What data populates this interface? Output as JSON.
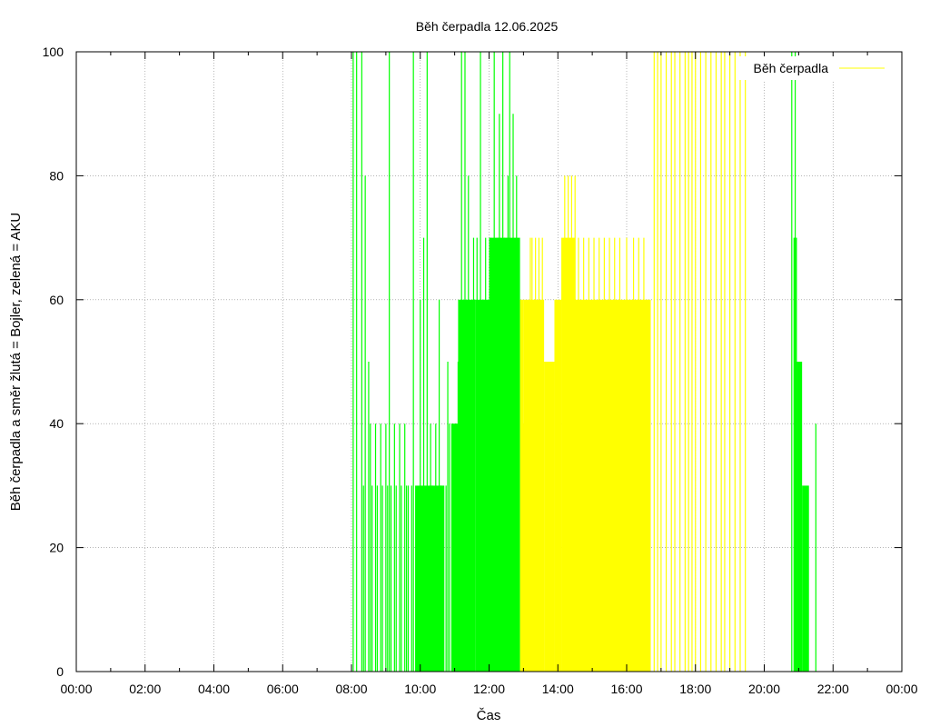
{
  "chart_data": {
    "type": "bar",
    "title": "Běh čerpadla 12.06.2025",
    "xlabel": "Čas",
    "ylabel": "Běh čerpadla a směr žlutá = Bojler, zelená = AKU",
    "xlim": [
      0,
      24
    ],
    "ylim": [
      0,
      100
    ],
    "x_ticks": [
      "00:00",
      "02:00",
      "04:00",
      "06:00",
      "08:00",
      "10:00",
      "12:00",
      "14:00",
      "16:00",
      "18:00",
      "20:00",
      "22:00",
      "00:00"
    ],
    "y_ticks": [
      "0",
      "20",
      "40",
      "60",
      "80",
      "100"
    ],
    "grid": true,
    "legend": {
      "entries": [
        "Běh čerpadla"
      ],
      "placement": "top-right",
      "color": "#ffff00"
    },
    "series": [
      {
        "direction": "AKU",
        "color": "#00ff00",
        "blocks": [
          {
            "start": 12.8,
            "end": 12.9,
            "value": 70
          },
          {
            "start": 12.0,
            "end": 12.8,
            "value": 70
          },
          {
            "start": 11.6,
            "end": 12.0,
            "value": 60
          },
          {
            "start": 11.1,
            "end": 11.6,
            "value": 60
          },
          {
            "start": 10.9,
            "end": 11.1,
            "value": 40
          },
          {
            "start": 9.85,
            "end": 10.7,
            "value": 30
          },
          {
            "start": 20.85,
            "end": 20.95,
            "value": 70
          },
          {
            "start": 20.95,
            "end": 21.1,
            "value": 50
          },
          {
            "start": 21.1,
            "end": 21.3,
            "value": 30
          }
        ],
        "spikes": [
          [
            8.05,
            100
          ],
          [
            8.15,
            100
          ],
          [
            8.3,
            100
          ],
          [
            8.35,
            30
          ],
          [
            8.4,
            80
          ],
          [
            8.5,
            50
          ],
          [
            8.55,
            40
          ],
          [
            8.6,
            30
          ],
          [
            8.7,
            40
          ],
          [
            8.75,
            30
          ],
          [
            8.85,
            40
          ],
          [
            8.9,
            30
          ],
          [
            9.0,
            40
          ],
          [
            9.05,
            30
          ],
          [
            9.1,
            100
          ],
          [
            9.15,
            30
          ],
          [
            9.25,
            40
          ],
          [
            9.3,
            30
          ],
          [
            9.4,
            40
          ],
          [
            9.45,
            30
          ],
          [
            9.55,
            40
          ],
          [
            9.6,
            30
          ],
          [
            9.65,
            30
          ],
          [
            9.75,
            30
          ],
          [
            9.8,
            100
          ],
          [
            10.0,
            60
          ],
          [
            10.1,
            70
          ],
          [
            10.2,
            100
          ],
          [
            10.3,
            40
          ],
          [
            10.35,
            30
          ],
          [
            10.45,
            40
          ],
          [
            10.55,
            60
          ],
          [
            10.6,
            30
          ],
          [
            10.75,
            30
          ],
          [
            10.8,
            50
          ],
          [
            10.85,
            40
          ],
          [
            11.05,
            40
          ],
          [
            11.1,
            50
          ],
          [
            11.2,
            100
          ],
          [
            11.3,
            100
          ],
          [
            11.4,
            80
          ],
          [
            11.5,
            60
          ],
          [
            11.55,
            70
          ],
          [
            11.65,
            70
          ],
          [
            11.75,
            100
          ],
          [
            11.85,
            60
          ],
          [
            11.9,
            70
          ],
          [
            12.05,
            70
          ],
          [
            12.15,
            100
          ],
          [
            12.25,
            70
          ],
          [
            12.3,
            90
          ],
          [
            12.4,
            100
          ],
          [
            12.45,
            70
          ],
          [
            12.55,
            80
          ],
          [
            12.6,
            100
          ],
          [
            12.7,
            90
          ],
          [
            12.8,
            80
          ],
          [
            20.8,
            100
          ],
          [
            20.9,
            100
          ],
          [
            21.0,
            50
          ],
          [
            21.5,
            40
          ]
        ]
      },
      {
        "direction": "Bojler",
        "color": "#ffff00",
        "blocks": [
          {
            "start": 12.9,
            "end": 13.0,
            "value": 60
          },
          {
            "start": 13.0,
            "end": 13.6,
            "value": 60
          },
          {
            "start": 13.6,
            "end": 13.9,
            "value": 50
          },
          {
            "start": 13.9,
            "end": 14.1,
            "value": 60
          },
          {
            "start": 14.1,
            "end": 14.5,
            "value": 70
          },
          {
            "start": 14.5,
            "end": 16.7,
            "value": 60
          }
        ],
        "spikes": [
          [
            13.0,
            40
          ],
          [
            13.1,
            40
          ],
          [
            13.2,
            70
          ],
          [
            13.25,
            70
          ],
          [
            13.35,
            70
          ],
          [
            13.45,
            70
          ],
          [
            13.55,
            70
          ],
          [
            13.75,
            40
          ],
          [
            13.85,
            40
          ],
          [
            13.95,
            60
          ],
          [
            14.2,
            80
          ],
          [
            14.3,
            80
          ],
          [
            14.4,
            80
          ],
          [
            14.5,
            80
          ],
          [
            14.6,
            70
          ],
          [
            14.75,
            70
          ],
          [
            14.9,
            70
          ],
          [
            15.05,
            70
          ],
          [
            15.2,
            70
          ],
          [
            15.35,
            70
          ],
          [
            15.5,
            70
          ],
          [
            15.65,
            70
          ],
          [
            15.8,
            70
          ],
          [
            16.0,
            70
          ],
          [
            16.2,
            70
          ],
          [
            16.35,
            70
          ],
          [
            16.5,
            70
          ],
          [
            16.6,
            60
          ],
          [
            16.8,
            100
          ],
          [
            16.9,
            100
          ],
          [
            17.0,
            100
          ],
          [
            17.15,
            100
          ],
          [
            17.3,
            100
          ],
          [
            17.4,
            100
          ],
          [
            17.55,
            100
          ],
          [
            17.7,
            100
          ],
          [
            17.8,
            100
          ],
          [
            17.9,
            100
          ],
          [
            18.0,
            100
          ],
          [
            18.15,
            100
          ],
          [
            18.3,
            100
          ],
          [
            18.45,
            100
          ],
          [
            18.6,
            100
          ],
          [
            18.75,
            100
          ],
          [
            18.85,
            100
          ],
          [
            19.0,
            100
          ],
          [
            19.15,
            100
          ],
          [
            19.3,
            100
          ],
          [
            19.45,
            100
          ]
        ]
      }
    ]
  }
}
